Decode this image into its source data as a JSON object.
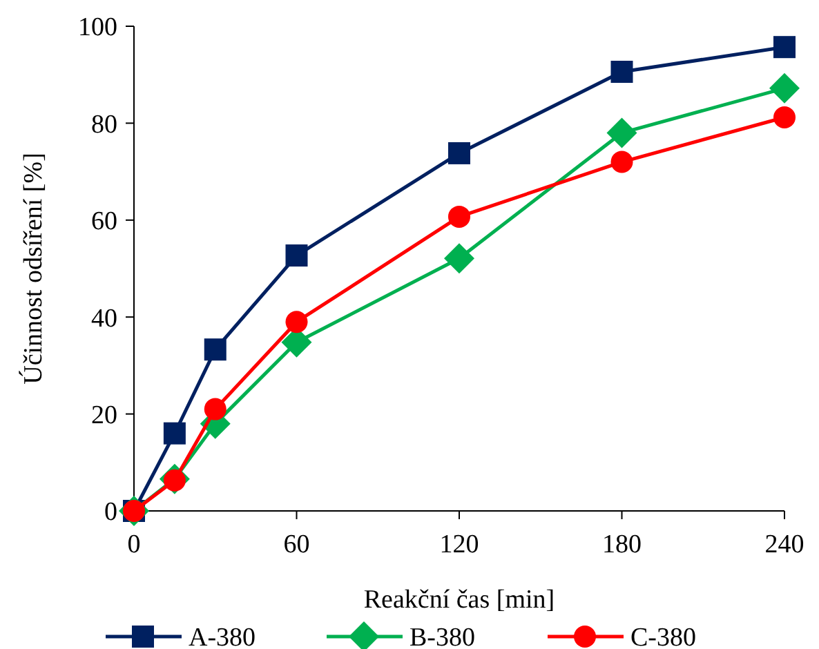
{
  "chart_data": {
    "type": "line",
    "xlabel": "Reakční čas [min]",
    "ylabel": "Účinnost odsíření [%]",
    "x": [
      0,
      15,
      30,
      60,
      120,
      180,
      240
    ],
    "xlim": [
      0,
      240
    ],
    "xticks": [
      0,
      60,
      120,
      180,
      240
    ],
    "ylim": [
      0,
      100
    ],
    "yticks": [
      0,
      20,
      40,
      60,
      80,
      100
    ],
    "legend": "bottom",
    "grid": false,
    "line_style": "solid",
    "series": [
      {
        "name": "A-380",
        "color": "#002060",
        "marker": "square",
        "values": [
          0,
          16,
          33.3,
          52.7,
          73.8,
          90.6,
          95.7
        ]
      },
      {
        "name": "B-380",
        "color": "#00b050",
        "marker": "diamond",
        "values": [
          0,
          6.6,
          18,
          34.8,
          52.1,
          78,
          87.2
        ]
      },
      {
        "name": "C-380",
        "color": "#ff0000",
        "marker": "circle",
        "values": [
          0,
          6.3,
          21,
          39,
          60.7,
          72,
          81.2
        ]
      }
    ]
  }
}
